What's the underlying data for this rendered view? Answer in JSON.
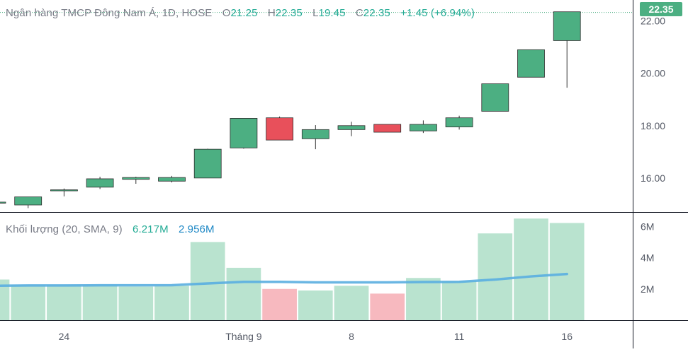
{
  "legend": {
    "symbol": "Ngân hàng TMCP Đông Nam Á, 1D, HOSE",
    "open_label": "O",
    "open": "21.25",
    "high_label": "H",
    "high": "22.35",
    "low_label": "L",
    "low": "19.45",
    "close_label": "C",
    "close": "22.35",
    "change": "+1.45 (+6.94%)"
  },
  "volume_legend": {
    "title": "Khối lượng (20, SMA, 9)",
    "volume": "6.217M",
    "sma": "2.956M"
  },
  "last_price_tag": "22.35",
  "colors": {
    "up": "#4caf82",
    "down": "#e8505b",
    "volume_up": "#b9e3cf",
    "volume_down": "#f7b9bf",
    "sma_line": "#5aaee0",
    "axis": "#131722",
    "tick_text": "#555a66"
  },
  "chart_data": [
    {
      "type": "candlestick",
      "title": "",
      "price_axis": {
        "ticks": [
          16.0,
          18.0,
          20.0,
          22.0
        ],
        "tick_labels": [
          "16.00",
          "18.00",
          "20.00",
          "22.00"
        ],
        "range": [
          14.7,
          22.8
        ]
      },
      "x_axis": {
        "tick_labels": [
          "24",
          "Tháng 9",
          "8",
          "11",
          "16"
        ],
        "tick_index": [
          2,
          7,
          10,
          13,
          16
        ]
      },
      "candles": [
        {
          "o": 15.08,
          "h": 15.1,
          "l": 14.9,
          "c": 15.08
        },
        {
          "o": 14.97,
          "h": 15.25,
          "l": 14.85,
          "c": 15.28
        },
        {
          "o": 15.52,
          "h": 15.6,
          "l": 15.3,
          "c": 15.55
        },
        {
          "o": 15.65,
          "h": 16.05,
          "l": 15.58,
          "c": 15.97
        },
        {
          "o": 15.95,
          "h": 16.05,
          "l": 15.78,
          "c": 16.02
        },
        {
          "o": 15.88,
          "h": 16.08,
          "l": 15.83,
          "c": 16.02
        },
        {
          "o": 16.0,
          "h": 17.12,
          "l": 16.0,
          "c": 17.1
        },
        {
          "o": 17.15,
          "h": 18.28,
          "l": 17.12,
          "c": 18.28
        },
        {
          "o": 18.3,
          "h": 18.35,
          "l": 17.45,
          "c": 17.45
        },
        {
          "o": 17.5,
          "h": 18.02,
          "l": 17.1,
          "c": 17.85
        },
        {
          "o": 17.85,
          "h": 18.15,
          "l": 17.6,
          "c": 18.0
        },
        {
          "o": 18.05,
          "h": 18.05,
          "l": 17.75,
          "c": 17.75
        },
        {
          "o": 17.8,
          "h": 18.2,
          "l": 17.72,
          "c": 18.05
        },
        {
          "o": 17.95,
          "h": 18.38,
          "l": 17.85,
          "c": 18.3
        },
        {
          "o": 18.55,
          "h": 19.6,
          "l": 18.55,
          "c": 19.6
        },
        {
          "o": 19.85,
          "h": 20.9,
          "l": 19.85,
          "c": 20.9
        },
        {
          "o": 21.25,
          "h": 22.35,
          "l": 19.45,
          "c": 22.35
        }
      ]
    },
    {
      "type": "bar",
      "title": "",
      "y_axis": {
        "ticks": [
          2,
          4,
          6
        ],
        "tick_labels": [
          "2M",
          "4M",
          "6M"
        ],
        "unit": "M",
        "range": [
          0,
          6.6
        ]
      },
      "volumes": [
        2.6,
        2.25,
        2.25,
        2.25,
        2.15,
        2.2,
        5.0,
        3.35,
        2.0,
        1.9,
        2.2,
        1.7,
        2.7,
        2.5,
        5.55,
        6.5,
        6.217
      ],
      "directions": [
        "up",
        "up",
        "up",
        "up",
        "up",
        "up",
        "up",
        "up",
        "down",
        "up",
        "up",
        "down",
        "up",
        "up",
        "up",
        "up",
        "up"
      ],
      "sma": [
        2.2,
        2.22,
        2.22,
        2.23,
        2.23,
        2.24,
        2.35,
        2.45,
        2.45,
        2.42,
        2.42,
        2.42,
        2.44,
        2.45,
        2.6,
        2.8,
        2.956
      ]
    }
  ]
}
